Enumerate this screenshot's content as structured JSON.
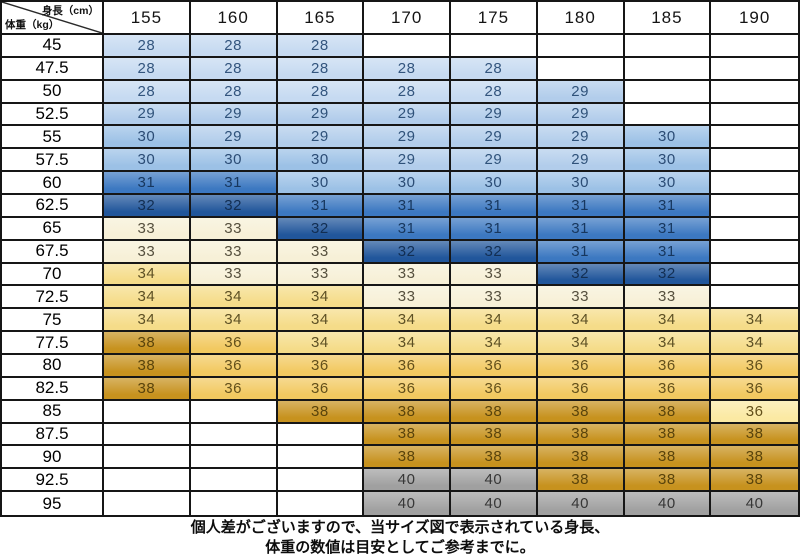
{
  "header": {
    "corner": {
      "height_label": "身長（cm）",
      "weight_label": "体重（kg）"
    },
    "columns": [
      "155",
      "160",
      "165",
      "170",
      "175",
      "180",
      "185",
      "190"
    ]
  },
  "palette": {
    "28": {
      "label": "28",
      "bg": "#C6DAF1",
      "fg": "#33557E"
    },
    "29": {
      "label": "29",
      "bg": "#B2CDEB",
      "fg": "#2F527A"
    },
    "30": {
      "label": "30",
      "bg": "#9CC1E6",
      "fg": "#2B4C75"
    },
    "31": {
      "label": "31",
      "bg": "#3C78C1",
      "fg": "#17375E"
    },
    "32": {
      "label": "32",
      "bg": "#21569B",
      "fg": "#122E52"
    },
    "33": {
      "label": "33",
      "bg": "#F7F0D7",
      "fg": "#56503E"
    },
    "34": {
      "label": "34",
      "bg": "#F5DC89",
      "fg": "#5D5024"
    },
    "36": {
      "label": "36",
      "bg": "#F2C960",
      "fg": "#63501B"
    },
    "36l": {
      "label": "36",
      "bg": "#FBE9A3",
      "fg": "#63501B"
    },
    "38": {
      "label": "38",
      "bg": "#C7921E",
      "fg": "#59430B"
    },
    "40": {
      "label": "40",
      "bg": "#A0A0A0",
      "fg": "#373737"
    }
  },
  "rows": [
    {
      "label": "45",
      "cells": [
        "28",
        "28",
        "28",
        null,
        null,
        null,
        null,
        null
      ]
    },
    {
      "label": "47.5",
      "cells": [
        "28",
        "28",
        "28",
        "28",
        "28",
        null,
        null,
        null
      ]
    },
    {
      "label": "50",
      "cells": [
        "28",
        "28",
        "28",
        "28",
        "28",
        "29",
        null,
        null
      ]
    },
    {
      "label": "52.5",
      "cells": [
        "29",
        "29",
        "29",
        "29",
        "29",
        "29",
        null,
        null
      ]
    },
    {
      "label": "55",
      "cells": [
        "30",
        "29",
        "29",
        "29",
        "29",
        "29",
        "30",
        null
      ]
    },
    {
      "label": "57.5",
      "cells": [
        "30",
        "30",
        "30",
        "29",
        "29",
        "29",
        "30",
        null
      ]
    },
    {
      "label": "60",
      "cells": [
        "31",
        "31",
        "30",
        "30",
        "30",
        "30",
        "30",
        null
      ]
    },
    {
      "label": "62.5",
      "cells": [
        "32",
        "32",
        "31",
        "31",
        "31",
        "31",
        "31",
        null
      ]
    },
    {
      "label": "65",
      "cells": [
        "33",
        "33",
        "32",
        "31",
        "31",
        "31",
        "31",
        null
      ]
    },
    {
      "label": "67.5",
      "cells": [
        "33",
        "33",
        "33",
        "32",
        "32",
        "31",
        "31",
        null
      ]
    },
    {
      "label": "70",
      "cells": [
        "34",
        "33",
        "33",
        "33",
        "33",
        "32",
        "32",
        null
      ]
    },
    {
      "label": "72.5",
      "cells": [
        "34",
        "34",
        "34",
        "33",
        "33",
        "33",
        "33",
        null
      ]
    },
    {
      "label": "75",
      "cells": [
        "34",
        "34",
        "34",
        "34",
        "34",
        "34",
        "34",
        "34"
      ]
    },
    {
      "label": "77.5",
      "cells": [
        "38",
        "36",
        "34",
        "34",
        "34",
        "34",
        "34",
        "34"
      ]
    },
    {
      "label": "80",
      "cells": [
        "38",
        "36",
        "36",
        "36",
        "36",
        "36",
        "36",
        "36"
      ]
    },
    {
      "label": "82.5",
      "cells": [
        "38",
        "36",
        "36",
        "36",
        "36",
        "36",
        "36",
        "36"
      ]
    },
    {
      "label": "85",
      "cells": [
        null,
        null,
        "38",
        "38",
        "38",
        "38",
        "38",
        "36l"
      ]
    },
    {
      "label": "87.5",
      "cells": [
        null,
        null,
        null,
        "38",
        "38",
        "38",
        "38",
        "38"
      ]
    },
    {
      "label": "90",
      "cells": [
        null,
        null,
        null,
        "38",
        "38",
        "38",
        "38",
        "38"
      ]
    },
    {
      "label": "92.5",
      "cells": [
        null,
        null,
        null,
        "40",
        "40",
        "38",
        "38",
        "38"
      ]
    },
    {
      "label": "95",
      "cells": [
        null,
        null,
        null,
        "40",
        "40",
        "40",
        "40",
        "40"
      ]
    }
  ],
  "footer": {
    "line1": "個人差がございますので、当サイズ図で表示されている身長、",
    "line2": "体重の数値は目安としてご参考までに。"
  },
  "chart_data": {
    "type": "table",
    "x_axis_label": "身長（cm）",
    "y_axis_label": "体重（kg）",
    "columns": [
      155,
      160,
      165,
      170,
      175,
      180,
      185,
      190
    ],
    "row_labels": [
      45,
      47.5,
      50,
      52.5,
      55,
      57.5,
      60,
      62.5,
      65,
      67.5,
      70,
      72.5,
      75,
      77.5,
      80,
      82.5,
      85,
      87.5,
      90,
      92.5,
      95
    ],
    "matrix": [
      [
        28,
        28,
        28,
        null,
        null,
        null,
        null,
        null
      ],
      [
        28,
        28,
        28,
        28,
        28,
        null,
        null,
        null
      ],
      [
        28,
        28,
        28,
        28,
        28,
        29,
        null,
        null
      ],
      [
        29,
        29,
        29,
        29,
        29,
        29,
        null,
        null
      ],
      [
        30,
        29,
        29,
        29,
        29,
        29,
        30,
        null
      ],
      [
        30,
        30,
        30,
        29,
        29,
        29,
        30,
        null
      ],
      [
        31,
        31,
        30,
        30,
        30,
        30,
        30,
        null
      ],
      [
        32,
        32,
        31,
        31,
        31,
        31,
        31,
        null
      ],
      [
        33,
        33,
        32,
        31,
        31,
        31,
        31,
        null
      ],
      [
        33,
        33,
        33,
        32,
        32,
        31,
        31,
        null
      ],
      [
        34,
        33,
        33,
        33,
        33,
        32,
        32,
        null
      ],
      [
        34,
        34,
        34,
        33,
        33,
        33,
        33,
        null
      ],
      [
        34,
        34,
        34,
        34,
        34,
        34,
        34,
        34
      ],
      [
        38,
        36,
        34,
        34,
        34,
        34,
        34,
        34
      ],
      [
        38,
        36,
        36,
        36,
        36,
        36,
        36,
        36
      ],
      [
        38,
        36,
        36,
        36,
        36,
        36,
        36,
        36
      ],
      [
        null,
        null,
        38,
        38,
        38,
        38,
        38,
        36
      ],
      [
        null,
        null,
        null,
        38,
        38,
        38,
        38,
        38
      ],
      [
        null,
        null,
        null,
        38,
        38,
        38,
        38,
        38
      ],
      [
        null,
        null,
        null,
        40,
        40,
        38,
        38,
        38
      ],
      [
        null,
        null,
        null,
        40,
        40,
        40,
        40,
        40
      ]
    ],
    "annotation": "個人差がございますので、当サイズ図で表示されている身長、体重の数値は目安としてご参考までに。"
  }
}
